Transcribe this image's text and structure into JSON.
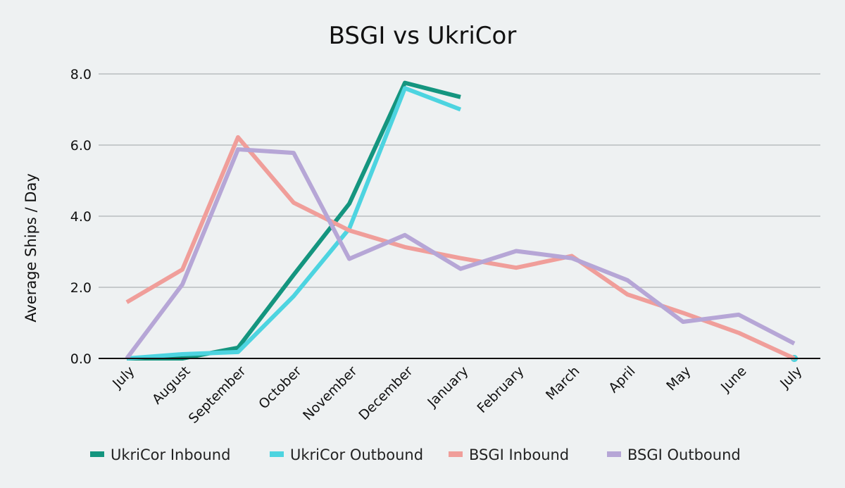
{
  "chart_data": {
    "type": "line",
    "title": "BSGI vs UkriCor",
    "xlabel": "",
    "ylabel": "Average Ships / Day",
    "categories": [
      "July",
      "August",
      "September",
      "October",
      "November",
      "December",
      "January",
      "February",
      "March",
      "April",
      "May",
      "June",
      "July"
    ],
    "yticks": [
      "0.0",
      "2.0",
      "4.0",
      "6.0",
      "8.0"
    ],
    "ylim": [
      0,
      8
    ],
    "grid": true,
    "legend_position": "bottom",
    "series": [
      {
        "name": "UkriCor Inbound",
        "color": "#14957f",
        "values": [
          0.0,
          0.0,
          0.3,
          2.35,
          4.35,
          7.75,
          7.35,
          null,
          null,
          null,
          null,
          null,
          0.0
        ]
      },
      {
        "name": "UkriCor Outbound",
        "color": "#4dd4e0",
        "values": [
          0.0,
          0.12,
          0.18,
          1.75,
          3.65,
          7.6,
          7.0,
          null,
          null,
          null,
          null,
          null,
          0.0
        ]
      },
      {
        "name": "BSGI Inbound",
        "color": "#f09e9a",
        "values": [
          1.58,
          2.5,
          6.22,
          4.38,
          3.6,
          3.13,
          2.82,
          2.55,
          2.88,
          1.8,
          1.28,
          0.72,
          0.0
        ]
      },
      {
        "name": "BSGI Outbound",
        "color": "#b6a6d6",
        "values": [
          0.0,
          2.08,
          5.88,
          5.78,
          2.8,
          3.47,
          2.52,
          3.02,
          2.82,
          2.2,
          1.03,
          1.23,
          0.42
        ]
      }
    ]
  }
}
